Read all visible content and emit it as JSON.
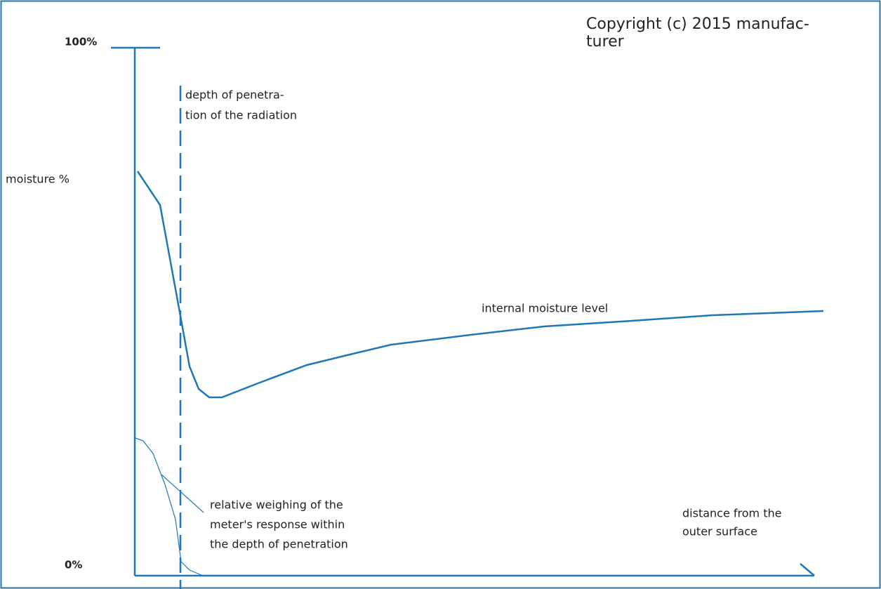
{
  "copyright": [
    "Copyright (c) 2015 manufac-",
    "turer"
  ],
  "axis": {
    "top_label": "100%",
    "bottom_label": "0%",
    "y_label": "moisture %",
    "x_label": [
      "distance from the",
      "outer surface"
    ]
  },
  "annotations": {
    "penetration": [
      "depth of penetra-",
      "tion of the radiation"
    ],
    "internal": "internal moisture level",
    "weighing": [
      "relative weighing of the",
      "meter's response within",
      "the depth of penetration"
    ]
  }
}
